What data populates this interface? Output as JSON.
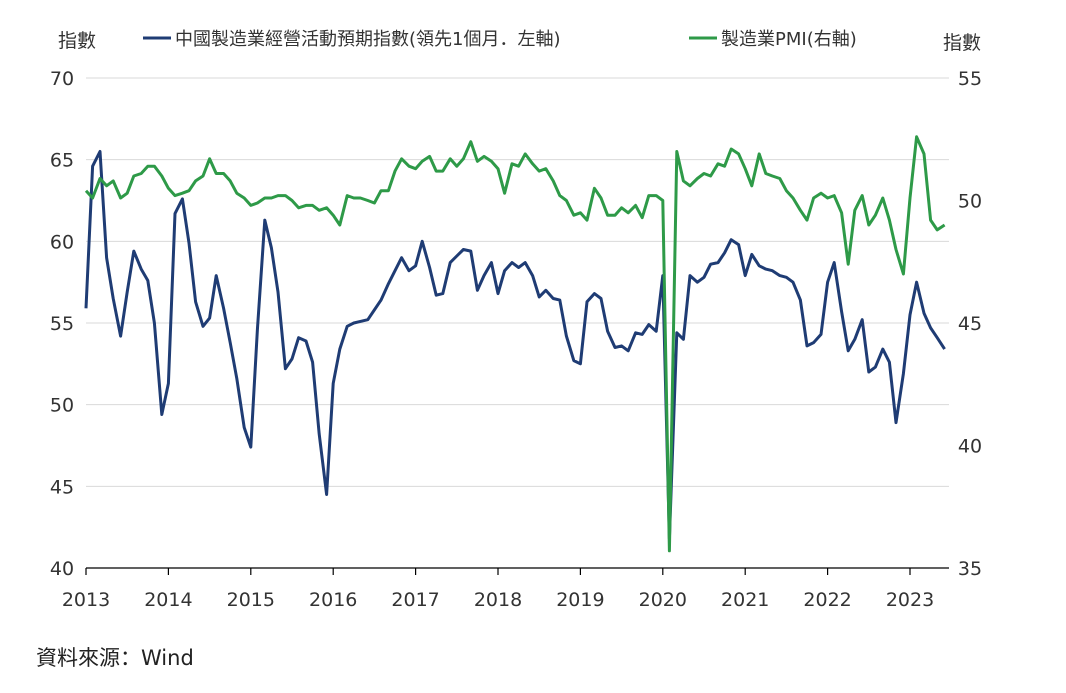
{
  "source": "資料來源：Wind",
  "chart_data": {
    "type": "line",
    "left_axis_unit": "指數",
    "right_axis_unit": "指數",
    "y_left": {
      "min": 40,
      "max": 70,
      "ticks": [
        40,
        45,
        50,
        55,
        60,
        65,
        70
      ]
    },
    "y_right": {
      "min": 35,
      "max": 55,
      "ticks": [
        35,
        40,
        45,
        50,
        55
      ]
    },
    "x_years": [
      "2013",
      "2014",
      "2015",
      "2016",
      "2017",
      "2018",
      "2019",
      "2020",
      "2021",
      "2022",
      "2023"
    ],
    "grid": "horizontal",
    "series": [
      {
        "name": "中國製造業經營活動預期指數(領先1個月．左軸)",
        "axis": "left",
        "color": "#1f3c74",
        "values": [
          [
            2013.0,
            55.9
          ],
          [
            2013.08,
            64.6
          ],
          [
            2013.17,
            65.5
          ],
          [
            2013.25,
            59.0
          ],
          [
            2013.33,
            56.5
          ],
          [
            2013.42,
            54.2
          ],
          [
            2013.5,
            56.9
          ],
          [
            2013.58,
            59.4
          ],
          [
            2013.67,
            58.3
          ],
          [
            2013.75,
            57.6
          ],
          [
            2013.83,
            55.0
          ],
          [
            2013.92,
            49.4
          ],
          [
            2014.0,
            51.3
          ],
          [
            2014.08,
            61.7
          ],
          [
            2014.17,
            62.6
          ],
          [
            2014.25,
            59.9
          ],
          [
            2014.33,
            56.3
          ],
          [
            2014.42,
            54.8
          ],
          [
            2014.5,
            55.3
          ],
          [
            2014.58,
            57.9
          ],
          [
            2014.67,
            55.9
          ],
          [
            2014.75,
            53.8
          ],
          [
            2014.83,
            51.6
          ],
          [
            2014.92,
            48.6
          ],
          [
            2015.0,
            47.4
          ],
          [
            2015.08,
            54.6
          ],
          [
            2015.17,
            61.3
          ],
          [
            2015.25,
            59.6
          ],
          [
            2015.33,
            56.9
          ],
          [
            2015.42,
            52.2
          ],
          [
            2015.5,
            52.8
          ],
          [
            2015.58,
            54.1
          ],
          [
            2015.67,
            53.9
          ],
          [
            2015.75,
            52.6
          ],
          [
            2015.83,
            48.2
          ],
          [
            2015.92,
            44.5
          ],
          [
            2016.0,
            51.3
          ],
          [
            2016.08,
            53.4
          ],
          [
            2016.17,
            54.8
          ],
          [
            2016.25,
            55.0
          ],
          [
            2016.33,
            55.1
          ],
          [
            2016.42,
            55.2
          ],
          [
            2016.5,
            55.8
          ],
          [
            2016.58,
            56.4
          ],
          [
            2016.67,
            57.4
          ],
          [
            2016.75,
            58.2
          ],
          [
            2016.83,
            59.0
          ],
          [
            2016.92,
            58.2
          ],
          [
            2017.0,
            58.5
          ],
          [
            2017.08,
            60.0
          ],
          [
            2017.17,
            58.4
          ],
          [
            2017.25,
            56.7
          ],
          [
            2017.33,
            56.8
          ],
          [
            2017.42,
            58.7
          ],
          [
            2017.5,
            59.1
          ],
          [
            2017.58,
            59.5
          ],
          [
            2017.67,
            59.4
          ],
          [
            2017.75,
            57.0
          ],
          [
            2017.83,
            57.9
          ],
          [
            2017.92,
            58.7
          ],
          [
            2018.0,
            56.8
          ],
          [
            2018.08,
            58.2
          ],
          [
            2018.17,
            58.7
          ],
          [
            2018.25,
            58.4
          ],
          [
            2018.33,
            58.7
          ],
          [
            2018.42,
            57.9
          ],
          [
            2018.5,
            56.6
          ],
          [
            2018.58,
            57.0
          ],
          [
            2018.67,
            56.5
          ],
          [
            2018.75,
            56.4
          ],
          [
            2018.83,
            54.2
          ],
          [
            2018.92,
            52.7
          ],
          [
            2019.0,
            52.5
          ],
          [
            2019.08,
            56.3
          ],
          [
            2019.17,
            56.8
          ],
          [
            2019.25,
            56.5
          ],
          [
            2019.33,
            54.5
          ],
          [
            2019.42,
            53.5
          ],
          [
            2019.5,
            53.6
          ],
          [
            2019.58,
            53.3
          ],
          [
            2019.67,
            54.4
          ],
          [
            2019.75,
            54.3
          ],
          [
            2019.83,
            54.9
          ],
          [
            2019.92,
            54.5
          ],
          [
            2020.0,
            57.9
          ],
          [
            2020.08,
            41.8
          ],
          [
            2020.17,
            54.4
          ],
          [
            2020.25,
            54.0
          ],
          [
            2020.33,
            57.9
          ],
          [
            2020.42,
            57.5
          ],
          [
            2020.5,
            57.8
          ],
          [
            2020.58,
            58.6
          ],
          [
            2020.67,
            58.7
          ],
          [
            2020.75,
            59.3
          ],
          [
            2020.83,
            60.1
          ],
          [
            2020.92,
            59.8
          ],
          [
            2021.0,
            57.9
          ],
          [
            2021.08,
            59.2
          ],
          [
            2021.17,
            58.5
          ],
          [
            2021.25,
            58.3
          ],
          [
            2021.33,
            58.2
          ],
          [
            2021.42,
            57.9
          ],
          [
            2021.5,
            57.8
          ],
          [
            2021.58,
            57.5
          ],
          [
            2021.67,
            56.4
          ],
          [
            2021.75,
            53.6
          ],
          [
            2021.83,
            53.8
          ],
          [
            2021.92,
            54.3
          ],
          [
            2022.0,
            57.5
          ],
          [
            2022.08,
            58.7
          ],
          [
            2022.17,
            55.7
          ],
          [
            2022.25,
            53.3
          ],
          [
            2022.33,
            54.0
          ],
          [
            2022.42,
            55.2
          ],
          [
            2022.5,
            52.0
          ],
          [
            2022.58,
            52.3
          ],
          [
            2022.67,
            53.4
          ],
          [
            2022.75,
            52.6
          ],
          [
            2022.83,
            48.9
          ],
          [
            2022.92,
            51.9
          ],
          [
            2023.0,
            55.5
          ],
          [
            2023.08,
            57.5
          ],
          [
            2023.17,
            55.6
          ],
          [
            2023.25,
            54.7
          ],
          [
            2023.33,
            54.1
          ],
          [
            2023.42,
            53.4
          ]
        ]
      },
      {
        "name": "製造業PMI(右軸)",
        "axis": "right",
        "color": "#2e9a48",
        "values": [
          [
            2013.0,
            50.4
          ],
          [
            2013.08,
            50.1
          ],
          [
            2013.17,
            50.9
          ],
          [
            2013.25,
            50.6
          ],
          [
            2013.33,
            50.8
          ],
          [
            2013.42,
            50.1
          ],
          [
            2013.5,
            50.3
          ],
          [
            2013.58,
            51.0
          ],
          [
            2013.67,
            51.1
          ],
          [
            2013.75,
            51.4
          ],
          [
            2013.83,
            51.4
          ],
          [
            2013.92,
            51.0
          ],
          [
            2014.0,
            50.5
          ],
          [
            2014.08,
            50.2
          ],
          [
            2014.17,
            50.3
          ],
          [
            2014.25,
            50.4
          ],
          [
            2014.33,
            50.8
          ],
          [
            2014.42,
            51.0
          ],
          [
            2014.5,
            51.7
          ],
          [
            2014.58,
            51.1
          ],
          [
            2014.67,
            51.1
          ],
          [
            2014.75,
            50.8
          ],
          [
            2014.83,
            50.3
          ],
          [
            2014.92,
            50.1
          ],
          [
            2015.0,
            49.8
          ],
          [
            2015.08,
            49.9
          ],
          [
            2015.17,
            50.1
          ],
          [
            2015.25,
            50.1
          ],
          [
            2015.33,
            50.2
          ],
          [
            2015.42,
            50.2
          ],
          [
            2015.5,
            50.0
          ],
          [
            2015.58,
            49.7
          ],
          [
            2015.67,
            49.8
          ],
          [
            2015.75,
            49.8
          ],
          [
            2015.83,
            49.6
          ],
          [
            2015.92,
            49.7
          ],
          [
            2016.0,
            49.4
          ],
          [
            2016.08,
            49.0
          ],
          [
            2016.17,
            50.2
          ],
          [
            2016.25,
            50.1
          ],
          [
            2016.33,
            50.1
          ],
          [
            2016.42,
            50.0
          ],
          [
            2016.5,
            49.9
          ],
          [
            2016.58,
            50.4
          ],
          [
            2016.67,
            50.4
          ],
          [
            2016.75,
            51.2
          ],
          [
            2016.83,
            51.7
          ],
          [
            2016.92,
            51.4
          ],
          [
            2017.0,
            51.3
          ],
          [
            2017.08,
            51.6
          ],
          [
            2017.17,
            51.8
          ],
          [
            2017.25,
            51.2
          ],
          [
            2017.33,
            51.2
          ],
          [
            2017.42,
            51.7
          ],
          [
            2017.5,
            51.4
          ],
          [
            2017.58,
            51.7
          ],
          [
            2017.67,
            52.4
          ],
          [
            2017.75,
            51.6
          ],
          [
            2017.83,
            51.8
          ],
          [
            2017.92,
            51.6
          ],
          [
            2018.0,
            51.3
          ],
          [
            2018.08,
            50.3
          ],
          [
            2018.17,
            51.5
          ],
          [
            2018.25,
            51.4
          ],
          [
            2018.33,
            51.9
          ],
          [
            2018.42,
            51.5
          ],
          [
            2018.5,
            51.2
          ],
          [
            2018.58,
            51.3
          ],
          [
            2018.67,
            50.8
          ],
          [
            2018.75,
            50.2
          ],
          [
            2018.83,
            50.0
          ],
          [
            2018.92,
            49.4
          ],
          [
            2019.0,
            49.5
          ],
          [
            2019.08,
            49.2
          ],
          [
            2019.17,
            50.5
          ],
          [
            2019.25,
            50.1
          ],
          [
            2019.33,
            49.4
          ],
          [
            2019.42,
            49.4
          ],
          [
            2019.5,
            49.7
          ],
          [
            2019.58,
            49.5
          ],
          [
            2019.67,
            49.8
          ],
          [
            2019.75,
            49.3
          ],
          [
            2019.83,
            50.2
          ],
          [
            2019.92,
            50.2
          ],
          [
            2020.0,
            50.0
          ],
          [
            2020.08,
            35.7
          ],
          [
            2020.17,
            52.0
          ],
          [
            2020.25,
            50.8
          ],
          [
            2020.33,
            50.6
          ],
          [
            2020.42,
            50.9
          ],
          [
            2020.5,
            51.1
          ],
          [
            2020.58,
            51.0
          ],
          [
            2020.67,
            51.5
          ],
          [
            2020.75,
            51.4
          ],
          [
            2020.83,
            52.1
          ],
          [
            2020.92,
            51.9
          ],
          [
            2021.0,
            51.3
          ],
          [
            2021.08,
            50.6
          ],
          [
            2021.17,
            51.9
          ],
          [
            2021.25,
            51.1
          ],
          [
            2021.33,
            51.0
          ],
          [
            2021.42,
            50.9
          ],
          [
            2021.5,
            50.4
          ],
          [
            2021.58,
            50.1
          ],
          [
            2021.67,
            49.6
          ],
          [
            2021.75,
            49.2
          ],
          [
            2021.83,
            50.1
          ],
          [
            2021.92,
            50.3
          ],
          [
            2022.0,
            50.1
          ],
          [
            2022.08,
            50.2
          ],
          [
            2022.17,
            49.5
          ],
          [
            2022.25,
            47.4
          ],
          [
            2022.33,
            49.6
          ],
          [
            2022.42,
            50.2
          ],
          [
            2022.5,
            49.0
          ],
          [
            2022.58,
            49.4
          ],
          [
            2022.67,
            50.1
          ],
          [
            2022.75,
            49.2
          ],
          [
            2022.83,
            48.0
          ],
          [
            2022.92,
            47.0
          ],
          [
            2023.0,
            50.1
          ],
          [
            2023.08,
            52.6
          ],
          [
            2023.17,
            51.9
          ],
          [
            2023.25,
            49.2
          ],
          [
            2023.33,
            48.8
          ],
          [
            2023.42,
            49.0
          ]
        ]
      }
    ]
  }
}
